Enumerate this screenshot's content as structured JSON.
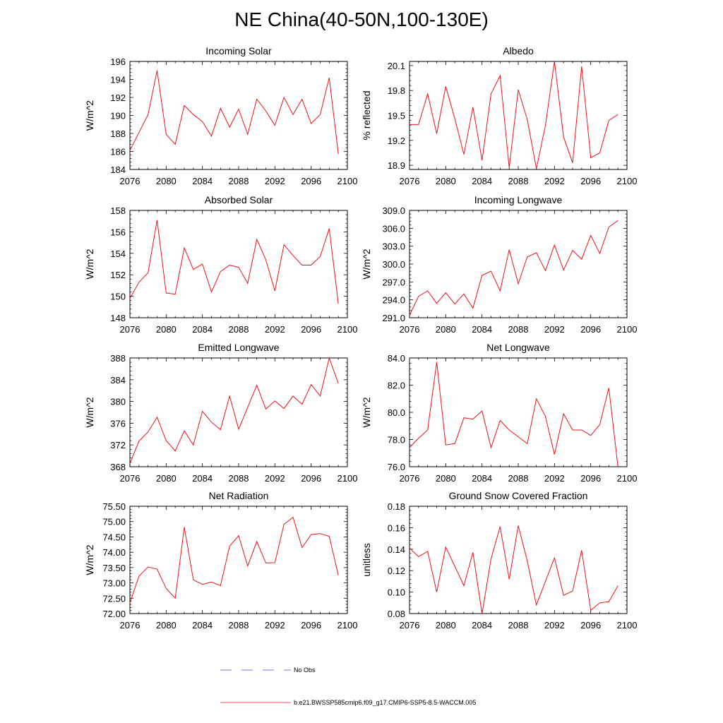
{
  "page": {
    "title": "NE China(40-50N,100-130E)",
    "line_color": "#e8141c",
    "obs_color": "#4a4ae0"
  },
  "legend": {
    "obs_label": "No Obs",
    "model_label": "b.e21.BWSSP585cmip6.f09_g17.CMIP6-SSP5-8.5-WACCM.005"
  },
  "chart_data": [
    {
      "type": "line",
      "title": "Incoming Solar",
      "ylabel": "W/m^2",
      "xlim": [
        2076,
        2100
      ],
      "ylim": [
        184,
        196
      ],
      "xticks": [
        "2076",
        "2080",
        "2084",
        "2088",
        "2092",
        "2096",
        "2100"
      ],
      "yticks": [
        "184",
        "186",
        "188",
        "190",
        "192",
        "194",
        "196"
      ],
      "x": [
        2076,
        2077,
        2078,
        2079,
        2080,
        2081,
        2082,
        2083,
        2084,
        2085,
        2086,
        2087,
        2088,
        2089,
        2090,
        2091,
        2092,
        2093,
        2094,
        2095,
        2096,
        2097,
        2098,
        2099
      ],
      "values": [
        186.1,
        188.1,
        190.1,
        195.0,
        187.9,
        186.8,
        191.1,
        190.1,
        189.3,
        187.7,
        190.8,
        188.7,
        190.7,
        187.9,
        191.8,
        190.5,
        188.9,
        192.0,
        190.1,
        191.8,
        189.1,
        190.1,
        194.2,
        185.7
      ]
    },
    {
      "type": "line",
      "title": "Albedo",
      "ylabel": "% reflected",
      "xlim": [
        2076,
        2100
      ],
      "ylim": [
        18.85,
        20.15
      ],
      "xticks": [
        "2076",
        "2080",
        "2084",
        "2088",
        "2092",
        "2096",
        "2100"
      ],
      "yticks": [
        "18.9",
        "19.2",
        "19.5",
        "19.8",
        "20.1"
      ],
      "ytick_values": [
        18.9,
        19.2,
        19.5,
        19.8,
        20.1
      ],
      "x": [
        2076,
        2077,
        2078,
        2079,
        2080,
        2081,
        2082,
        2083,
        2084,
        2085,
        2086,
        2087,
        2088,
        2089,
        2090,
        2091,
        2092,
        2093,
        2094,
        2095,
        2096,
        2097,
        2098,
        2099
      ],
      "values": [
        19.39,
        19.39,
        19.76,
        19.28,
        19.85,
        19.46,
        19.03,
        19.6,
        18.96,
        19.76,
        19.98,
        18.87,
        19.81,
        19.45,
        18.86,
        19.38,
        20.15,
        19.24,
        18.93,
        20.09,
        18.99,
        19.05,
        19.44,
        19.51
      ]
    },
    {
      "type": "line",
      "title": "Absorbed Solar",
      "ylabel": "W/m^2",
      "xlim": [
        2076,
        2100
      ],
      "ylim": [
        148,
        158
      ],
      "xticks": [
        "2076",
        "2080",
        "2084",
        "2088",
        "2092",
        "2096",
        "2100"
      ],
      "yticks": [
        "148",
        "150",
        "152",
        "154",
        "156",
        "158"
      ],
      "x": [
        2076,
        2077,
        2078,
        2079,
        2080,
        2081,
        2082,
        2083,
        2084,
        2085,
        2086,
        2087,
        2088,
        2089,
        2090,
        2091,
        2092,
        2093,
        2094,
        2095,
        2096,
        2097,
        2098,
        2099
      ],
      "values": [
        149.8,
        151.3,
        152.2,
        157.1,
        150.3,
        150.2,
        154.5,
        152.5,
        153.0,
        150.4,
        152.3,
        152.9,
        152.7,
        151.2,
        155.3,
        153.4,
        150.5,
        154.8,
        153.8,
        152.9,
        152.9,
        153.7,
        156.3,
        149.3
      ]
    },
    {
      "type": "line",
      "title": "Incoming Longwave",
      "ylabel": "W/m^2",
      "xlim": [
        2076,
        2100
      ],
      "ylim": [
        291,
        309
      ],
      "xticks": [
        "2076",
        "2080",
        "2084",
        "2088",
        "2092",
        "2096",
        "2100"
      ],
      "yticks": [
        "291.0",
        "294.0",
        "297.0",
        "300.0",
        "303.0",
        "306.0",
        "309.0"
      ],
      "ytick_values": [
        291,
        294,
        297,
        300,
        303,
        306,
        309
      ],
      "x": [
        2076,
        2077,
        2078,
        2079,
        2080,
        2081,
        2082,
        2083,
        2084,
        2085,
        2086,
        2087,
        2088,
        2089,
        2090,
        2091,
        2092,
        2093,
        2094,
        2095,
        2096,
        2097,
        2098,
        2099
      ],
      "values": [
        291.4,
        294.6,
        295.5,
        293.4,
        295.2,
        293.3,
        295.0,
        292.6,
        298.1,
        298.8,
        295.5,
        302.4,
        296.7,
        301.2,
        301.9,
        298.9,
        303.2,
        299.0,
        302.3,
        300.8,
        304.8,
        301.8,
        306.2,
        307.3
      ]
    },
    {
      "type": "line",
      "title": "Emitted Longwave",
      "ylabel": "W/m^2",
      "xlim": [
        2076,
        2100
      ],
      "ylim": [
        368,
        388
      ],
      "xticks": [
        "2076",
        "2080",
        "2084",
        "2088",
        "2092",
        "2096",
        "2100"
      ],
      "yticks": [
        "368",
        "372",
        "376",
        "380",
        "384",
        "388"
      ],
      "x": [
        2076,
        2077,
        2078,
        2079,
        2080,
        2081,
        2082,
        2083,
        2084,
        2085,
        2086,
        2087,
        2088,
        2089,
        2090,
        2091,
        2092,
        2093,
        2094,
        2095,
        2096,
        2097,
        2098,
        2099
      ],
      "values": [
        368.6,
        372.7,
        374.4,
        377.1,
        372.8,
        370.9,
        374.6,
        372.0,
        378.2,
        376.2,
        374.8,
        381.0,
        374.9,
        378.9,
        383.0,
        378.6,
        380.1,
        378.7,
        381.0,
        379.5,
        383.1,
        381.0,
        388.0,
        383.3
      ]
    },
    {
      "type": "line",
      "title": "Net Longwave",
      "ylabel": "W/m^2",
      "xlim": [
        2076,
        2100
      ],
      "ylim": [
        76,
        84
      ],
      "xticks": [
        "2076",
        "2080",
        "2084",
        "2088",
        "2092",
        "2096",
        "2100"
      ],
      "yticks": [
        "76.0",
        "78.0",
        "80.0",
        "82.0",
        "84.0"
      ],
      "ytick_values": [
        76,
        78,
        80,
        82,
        84
      ],
      "x": [
        2076,
        2077,
        2078,
        2079,
        2080,
        2081,
        2082,
        2083,
        2084,
        2085,
        2086,
        2087,
        2088,
        2089,
        2090,
        2091,
        2092,
        2093,
        2094,
        2095,
        2096,
        2097,
        2098,
        2099
      ],
      "values": [
        77.4,
        78.1,
        78.7,
        83.7,
        77.6,
        77.7,
        79.6,
        79.5,
        80.1,
        77.4,
        79.4,
        78.7,
        78.2,
        77.7,
        81.0,
        79.7,
        76.9,
        79.9,
        78.7,
        78.7,
        78.3,
        79.1,
        81.8,
        76.0
      ]
    },
    {
      "type": "line",
      "title": "Net Radiation",
      "ylabel": "W/m^2",
      "xlim": [
        2076,
        2100
      ],
      "ylim": [
        72.0,
        75.5
      ],
      "xticks": [
        "2076",
        "2080",
        "2084",
        "2088",
        "2092",
        "2096",
        "2100"
      ],
      "yticks": [
        "72.00",
        "72.50",
        "73.00",
        "73.50",
        "74.00",
        "74.50",
        "75.00",
        "75.50"
      ],
      "ytick_values": [
        72.0,
        72.5,
        73.0,
        73.5,
        74.0,
        74.5,
        75.0,
        75.5
      ],
      "x": [
        2076,
        2077,
        2078,
        2079,
        2080,
        2081,
        2082,
        2083,
        2084,
        2085,
        2086,
        2087,
        2088,
        2089,
        2090,
        2091,
        2092,
        2093,
        2094,
        2095,
        2096,
        2097,
        2098,
        2099
      ],
      "values": [
        72.35,
        73.22,
        73.52,
        73.45,
        72.82,
        72.5,
        74.82,
        73.1,
        72.95,
        73.03,
        72.91,
        74.2,
        74.54,
        73.55,
        74.35,
        73.65,
        73.66,
        74.91,
        75.14,
        74.15,
        74.58,
        74.61,
        74.52,
        73.25
      ]
    },
    {
      "type": "line",
      "title": "Ground Snow Covered Fraction",
      "ylabel": "unitless",
      "xlim": [
        2076,
        2100
      ],
      "ylim": [
        0.08,
        0.18
      ],
      "xticks": [
        "2076",
        "2080",
        "2084",
        "2088",
        "2092",
        "2096",
        "2100"
      ],
      "yticks": [
        "0.08",
        "0.10",
        "0.12",
        "0.14",
        "0.16",
        "0.18"
      ],
      "ytick_values": [
        0.08,
        0.1,
        0.12,
        0.14,
        0.16,
        0.18
      ],
      "x": [
        2076,
        2077,
        2078,
        2079,
        2080,
        2081,
        2082,
        2083,
        2084,
        2085,
        2086,
        2087,
        2088,
        2089,
        2090,
        2091,
        2092,
        2093,
        2094,
        2095,
        2096,
        2097,
        2098,
        2099
      ],
      "values": [
        0.141,
        0.133,
        0.138,
        0.1,
        0.142,
        0.124,
        0.106,
        0.137,
        0.08,
        0.131,
        0.161,
        0.112,
        0.162,
        0.129,
        0.088,
        0.11,
        0.132,
        0.097,
        0.101,
        0.139,
        0.083,
        0.09,
        0.091,
        0.106
      ]
    }
  ]
}
